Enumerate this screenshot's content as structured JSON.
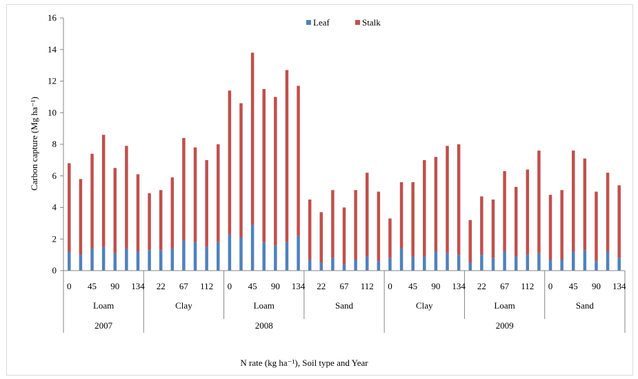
{
  "chart_data": {
    "type": "bar",
    "stacked": true,
    "xlabel": "N rate (kg ha⁻¹), Soil type and Year",
    "ylabel": "Carbon capture (Mg ha⁻¹)",
    "ylim": [
      0,
      16
    ],
    "yticks": [
      "0",
      "2",
      "4",
      "6",
      "8",
      "10",
      "12",
      "14",
      "16"
    ],
    "legend_position": "top-center",
    "colors": {
      "Leaf": "#4f81bd",
      "Stalk": "#c0504d"
    },
    "groups": [
      {
        "year": "2007",
        "soil": "Loam",
        "n_rates": [
          0,
          22,
          45,
          67,
          90,
          112,
          134
        ],
        "tick_labels": [
          "0",
          "45",
          "90",
          "134"
        ],
        "leaf": [
          1.2,
          1.0,
          1.4,
          1.5,
          1.1,
          1.4,
          1.2
        ],
        "total": [
          6.8,
          5.8,
          7.4,
          8.6,
          6.5,
          7.9,
          6.1
        ]
      },
      {
        "year": "2008",
        "soil": "Clay",
        "n_rates": [
          0,
          22,
          45,
          67,
          90,
          112,
          134
        ],
        "tick_labels": [
          "22",
          "67",
          "112"
        ],
        "leaf": [
          1.3,
          1.3,
          1.4,
          1.9,
          1.8,
          1.5,
          1.8
        ],
        "total": [
          4.9,
          5.1,
          5.9,
          8.4,
          7.8,
          7.0,
          8.0
        ]
      },
      {
        "year": "2008",
        "soil": "Loam",
        "n_rates": [
          0,
          22,
          45,
          67,
          90,
          112,
          134
        ],
        "tick_labels": [
          "0",
          "45",
          "90",
          "134"
        ],
        "leaf": [
          2.3,
          2.1,
          2.9,
          1.8,
          1.6,
          1.8,
          2.2
        ],
        "total": [
          11.4,
          10.6,
          13.8,
          11.5,
          11.0,
          12.7,
          11.7
        ]
      },
      {
        "year": "2008",
        "soil": "Sand",
        "n_rates": [
          0,
          22,
          45,
          67,
          90,
          112,
          134
        ],
        "tick_labels": [
          "22",
          "67",
          "112"
        ],
        "leaf": [
          0.7,
          0.5,
          0.8,
          0.4,
          0.7,
          0.9,
          0.6
        ],
        "total": [
          4.5,
          3.7,
          5.1,
          4.0,
          5.1,
          6.2,
          5.0
        ]
      },
      {
        "year": "2009",
        "soil": "Clay",
        "n_rates": [
          0,
          22,
          45,
          67,
          90,
          112,
          134
        ],
        "tick_labels": [
          "0",
          "45",
          "90",
          "134"
        ],
        "leaf": [
          0.8,
          1.4,
          0.9,
          0.9,
          1.2,
          1.1,
          1.0
        ],
        "total": [
          3.3,
          5.6,
          5.6,
          7.0,
          7.2,
          7.9,
          8.0
        ]
      },
      {
        "year": "2009",
        "soil": "Loam",
        "n_rates": [
          0,
          22,
          45,
          67,
          90,
          112,
          134
        ],
        "tick_labels": [
          "22",
          "67",
          "112"
        ],
        "leaf": [
          0.5,
          1.0,
          0.8,
          1.2,
          0.9,
          1.0,
          1.1
        ],
        "total": [
          3.2,
          4.7,
          4.5,
          6.3,
          5.3,
          6.4,
          7.6
        ]
      },
      {
        "year": "2009",
        "soil": "Sand",
        "n_rates": [
          0,
          22,
          45,
          67,
          90,
          112,
          134
        ],
        "tick_labels": [
          "0",
          "45",
          "90",
          "134"
        ],
        "leaf": [
          0.7,
          0.7,
          1.2,
          1.3,
          0.6,
          1.2,
          0.8
        ],
        "total": [
          4.8,
          5.1,
          7.6,
          7.1,
          5.0,
          6.2,
          5.4
        ]
      }
    ],
    "series": [
      {
        "name": "Leaf"
      },
      {
        "name": "Stalk"
      }
    ],
    "years": [
      {
        "label": "2007",
        "span": 1
      },
      {
        "label": "2008",
        "span": 3
      },
      {
        "label": "2009",
        "span": 3
      }
    ]
  }
}
